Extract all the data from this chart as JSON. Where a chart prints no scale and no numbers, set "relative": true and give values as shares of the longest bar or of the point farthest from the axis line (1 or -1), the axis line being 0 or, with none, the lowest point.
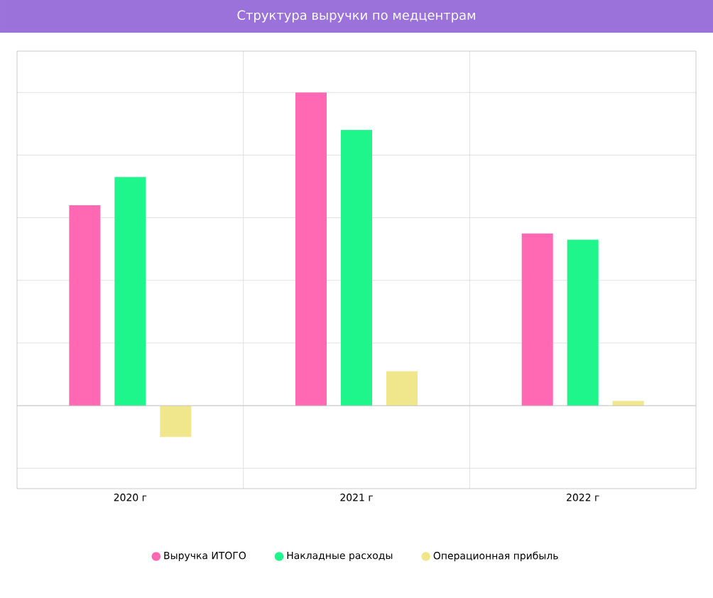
{
  "chart_data": {
    "type": "bar",
    "title": "Структура выручки по медцентрам",
    "categories": [
      "2020 г",
      "2021 г",
      "2022 г"
    ],
    "relative": true,
    "series": [
      {
        "name": "Выручка ИТОГО",
        "color": "#ff69b4",
        "values": [
          0.64,
          1,
          0.55
        ]
      },
      {
        "name": "Накладные расходы",
        "color": "#1ef58a",
        "values": [
          0.73,
          0.88,
          0.53
        ]
      },
      {
        "name": "Операционная прибыль",
        "color": "#f0e68c",
        "values": [
          -0.1,
          0.11,
          0.015
        ]
      }
    ],
    "grid": true,
    "legend": "bottom"
  }
}
